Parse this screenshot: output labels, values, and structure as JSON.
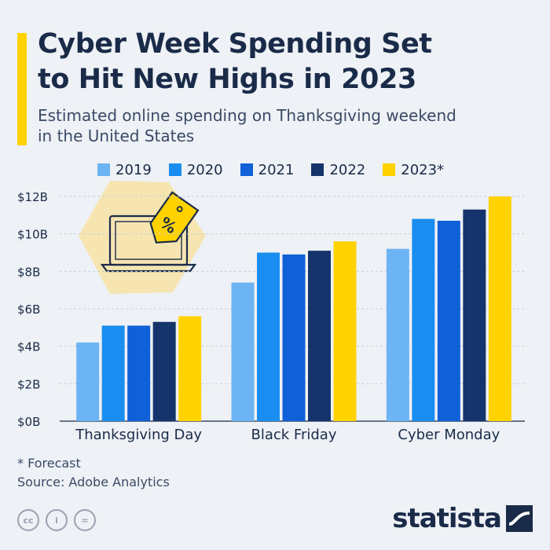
{
  "header": {
    "title_line1": "Cyber Week Spending Set",
    "title_line2": "to Hit New Highs in 2023",
    "subtitle_line1": "Estimated online spending on Thanksgiving weekend",
    "subtitle_line2": "in the United States"
  },
  "chart_data": {
    "type": "bar",
    "title": "Cyber Week Spending Set to Hit New Highs in 2023",
    "subtitle": "Estimated online spending on Thanksgiving weekend in the United States",
    "categories": [
      "Thanksgiving Day",
      "Black Friday",
      "Cyber Monday"
    ],
    "series": [
      {
        "name": "2019",
        "color": "#6cb4f3",
        "values": [
          4.2,
          7.4,
          9.2
        ]
      },
      {
        "name": "2020",
        "color": "#1a8ef0",
        "values": [
          5.1,
          9.0,
          10.8
        ]
      },
      {
        "name": "2021",
        "color": "#1060d8",
        "values": [
          5.1,
          8.9,
          10.7
        ]
      },
      {
        "name": "2022",
        "color": "#14346b",
        "values": [
          5.3,
          9.1,
          11.3
        ]
      },
      {
        "name": "2023*",
        "color": "#ffd200",
        "values": [
          5.6,
          9.6,
          12.0
        ]
      }
    ],
    "yticks": [
      "$0B",
      "$2B",
      "$4B",
      "$6B",
      "$8B",
      "$10B",
      "$12B"
    ],
    "ylim": [
      0,
      12
    ],
    "xlabel": "",
    "ylabel": "",
    "legend_position": "top",
    "grid": true
  },
  "notes": {
    "forecast": "* Forecast",
    "source": "Source: Adobe Analytics"
  },
  "brand": {
    "name": "statista",
    "accent_color": "#ffd200",
    "text_color": "#1a2b49"
  },
  "license_icons": [
    "cc",
    "i",
    "="
  ]
}
